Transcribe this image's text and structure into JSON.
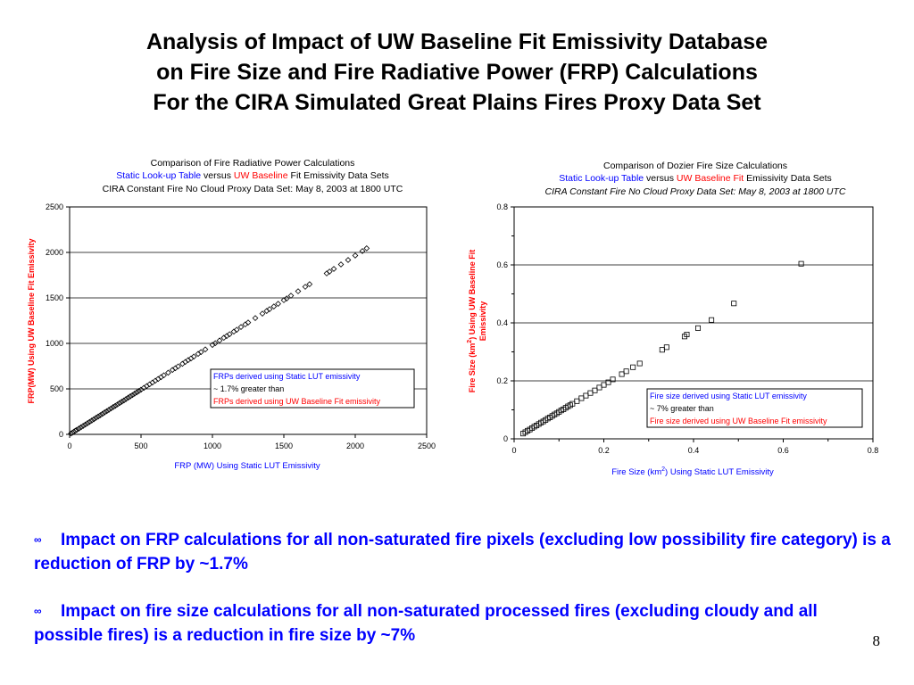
{
  "slide": {
    "title_lines": [
      "Analysis of Impact of UW Baseline Fit Emissivity Database",
      "on Fire Size and Fire Radiative Power (FRP) Calculations",
      "For the CIRA Simulated Great Plains Fires Proxy Data Set"
    ],
    "bullets": [
      {
        "icon": "stylized-bullet-icon",
        "text": "Impact on FRP calculations for all non-saturated fire pixels (excluding low possibility fire category) is a reduction of FRP by ~1.7%"
      },
      {
        "icon": "stylized-bullet-icon",
        "text": "Impact on fire size calculations for all non-saturated processed fires (excluding cloudy and all possible fires) is a reduction in fire size by ~7%"
      }
    ],
    "page_number": "8"
  },
  "chart_data": [
    {
      "type": "scatter",
      "title": {
        "line1": "Comparison of Fire Radiative Power Calculations",
        "line2": {
          "part1": "Static Look-up Table",
          "part2": " versus ",
          "part3": "UW Baseline",
          "part4": " Fit Emissivity Data Sets"
        },
        "line3": "CIRA Constant Fire No Cloud Proxy Data Set:  May 8, 2003 at 1800 UTC"
      },
      "xlabel": "FRP (MW) Using Static LUT Emissivity",
      "ylabel": "FRP(MW) Using UW Baseline Fit Emissivity",
      "xlim": [
        0,
        2500
      ],
      "ylim": [
        0,
        2500
      ],
      "xticks": [
        "0",
        "500",
        "1000",
        "1500",
        "2000",
        "2500"
      ],
      "yticks": [
        "0",
        "500",
        "1000",
        "1500",
        "2000",
        "2500"
      ],
      "grid": "horizontal",
      "marker": "diamond",
      "colors": {
        "blue": "#0000FF",
        "red": "#FF0000"
      },
      "annotation": {
        "line1": "FRPs derived using Static LUT emissivity",
        "line2": "~ 1.7% greater than",
        "line3": "FRPs derived using UW Baseline Fit emissivity"
      },
      "points": [
        [
          10,
          10
        ],
        [
          20,
          19
        ],
        [
          30,
          29
        ],
        [
          40,
          40
        ],
        [
          50,
          49
        ],
        [
          65,
          64
        ],
        [
          80,
          78
        ],
        [
          95,
          93
        ],
        [
          110,
          108
        ],
        [
          125,
          123
        ],
        [
          140,
          137
        ],
        [
          155,
          152
        ],
        [
          170,
          167
        ],
        [
          185,
          182
        ],
        [
          200,
          196
        ],
        [
          215,
          211
        ],
        [
          230,
          226
        ],
        [
          245,
          241
        ],
        [
          260,
          255
        ],
        [
          275,
          270
        ],
        [
          290,
          285
        ],
        [
          305,
          300
        ],
        [
          320,
          314
        ],
        [
          335,
          329
        ],
        [
          350,
          344
        ],
        [
          365,
          359
        ],
        [
          380,
          373
        ],
        [
          395,
          388
        ],
        [
          410,
          403
        ],
        [
          425,
          418
        ],
        [
          440,
          432
        ],
        [
          455,
          447
        ],
        [
          470,
          462
        ],
        [
          485,
          477
        ],
        [
          500,
          491
        ],
        [
          520,
          511
        ],
        [
          540,
          531
        ],
        [
          560,
          550
        ],
        [
          580,
          570
        ],
        [
          600,
          590
        ],
        [
          620,
          609
        ],
        [
          640,
          629
        ],
        [
          660,
          649
        ],
        [
          690,
          678
        ],
        [
          720,
          708
        ],
        [
          740,
          727
        ],
        [
          760,
          747
        ],
        [
          790,
          776
        ],
        [
          810,
          796
        ],
        [
          830,
          816
        ],
        [
          850,
          835
        ],
        [
          870,
          855
        ],
        [
          900,
          885
        ],
        [
          920,
          904
        ],
        [
          950,
          934
        ],
        [
          1000,
          983
        ],
        [
          1020,
          1002
        ],
        [
          1050,
          1032
        ],
        [
          1080,
          1062
        ],
        [
          1100,
          1081
        ],
        [
          1120,
          1101
        ],
        [
          1150,
          1130
        ],
        [
          1170,
          1150
        ],
        [
          1200,
          1180
        ],
        [
          1230,
          1209
        ],
        [
          1250,
          1229
        ],
        [
          1300,
          1278
        ],
        [
          1350,
          1327
        ],
        [
          1380,
          1357
        ],
        [
          1400,
          1376
        ],
        [
          1430,
          1406
        ],
        [
          1460,
          1435
        ],
        [
          1500,
          1475
        ],
        [
          1520,
          1494
        ],
        [
          1550,
          1524
        ],
        [
          1600,
          1573
        ],
        [
          1650,
          1622
        ],
        [
          1680,
          1651
        ],
        [
          1800,
          1769
        ],
        [
          1820,
          1789
        ],
        [
          1850,
          1819
        ],
        [
          1900,
          1868
        ],
        [
          1950,
          1917
        ],
        [
          2000,
          1966
        ],
        [
          2050,
          2015
        ],
        [
          2080,
          2045
        ]
      ]
    },
    {
      "type": "scatter",
      "title": {
        "line1": "Comparison of Dozier Fire Size Calculations",
        "line2": {
          "part1": "Static Look-up Table",
          "part2": " versus ",
          "part3": "UW Baseline Fit",
          "part4": " Emissivity Data Sets"
        },
        "line3": "CIRA Constant Fire No Cloud Proxy Data Set:  May 8, 2003 at 1800 UTC"
      },
      "xlabel": {
        "before": "Fire Size (km",
        "sup": "2",
        "after": ") Using Static LUT Emissivity"
      },
      "ylabel": {
        "before": "Fire Size (km",
        "sup": "2",
        "after": ") Using UW Baseline Fit",
        "line2": "Emissivity"
      },
      "xlim": [
        0,
        0.8
      ],
      "ylim": [
        0,
        0.8
      ],
      "xticks": [
        "0",
        "0.2",
        "0.4",
        "0.6",
        "0.8"
      ],
      "yticks": [
        "0",
        "0.2",
        "0.4",
        "0.6",
        "0.8"
      ],
      "grid": "horizontal",
      "marker": "square",
      "colors": {
        "blue": "#0000FF",
        "red": "#FF0000"
      },
      "annotation": {
        "line1": "Fire size derived using Static LUT emissivity",
        "line2": "~ 7% greater than",
        "line3": "Fire size derived using UW Baseline Fit emissivity"
      },
      "points": [
        [
          0.02,
          0.018
        ],
        [
          0.025,
          0.023
        ],
        [
          0.03,
          0.028
        ],
        [
          0.035,
          0.032
        ],
        [
          0.04,
          0.037
        ],
        [
          0.045,
          0.042
        ],
        [
          0.05,
          0.046
        ],
        [
          0.055,
          0.051
        ],
        [
          0.06,
          0.056
        ],
        [
          0.065,
          0.06
        ],
        [
          0.07,
          0.065
        ],
        [
          0.075,
          0.07
        ],
        [
          0.08,
          0.074
        ],
        [
          0.085,
          0.079
        ],
        [
          0.09,
          0.084
        ],
        [
          0.095,
          0.088
        ],
        [
          0.1,
          0.093
        ],
        [
          0.105,
          0.098
        ],
        [
          0.11,
          0.102
        ],
        [
          0.115,
          0.107
        ],
        [
          0.12,
          0.112
        ],
        [
          0.125,
          0.116
        ],
        [
          0.13,
          0.121
        ],
        [
          0.14,
          0.13
        ],
        [
          0.15,
          0.14
        ],
        [
          0.16,
          0.149
        ],
        [
          0.17,
          0.158
        ],
        [
          0.18,
          0.167
        ],
        [
          0.19,
          0.177
        ],
        [
          0.2,
          0.186
        ],
        [
          0.21,
          0.195
        ],
        [
          0.22,
          0.205
        ],
        [
          0.24,
          0.223
        ],
        [
          0.25,
          0.233
        ],
        [
          0.265,
          0.247
        ],
        [
          0.28,
          0.26
        ],
        [
          0.33,
          0.307
        ],
        [
          0.34,
          0.316
        ],
        [
          0.38,
          0.353
        ],
        [
          0.385,
          0.36
        ],
        [
          0.41,
          0.382
        ],
        [
          0.44,
          0.41
        ],
        [
          0.49,
          0.467
        ],
        [
          0.64,
          0.604
        ]
      ]
    }
  ]
}
